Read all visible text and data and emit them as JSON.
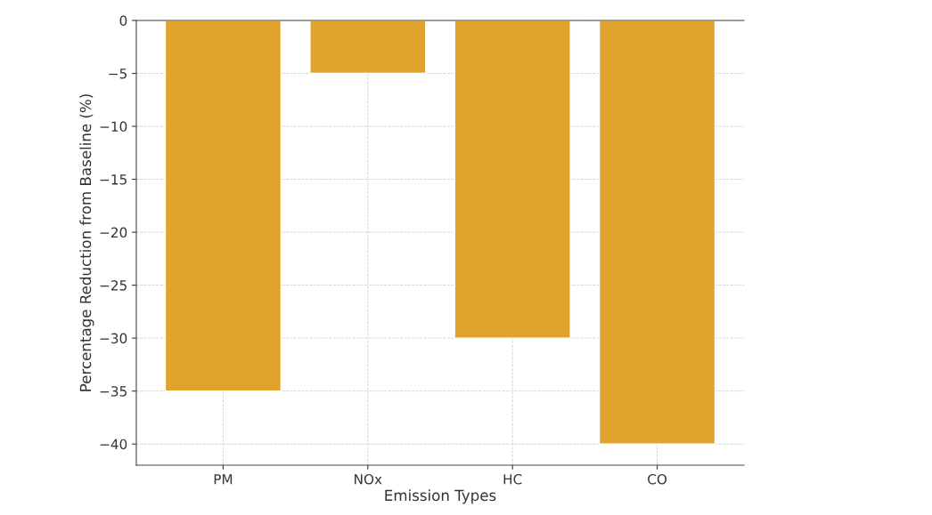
{
  "chart_data": {
    "type": "bar",
    "xlabel": "Emission Types",
    "ylabel": "Percentage Reduction from Baseline (%)",
    "categories": [
      "PM",
      "NOx",
      "HC",
      "CO"
    ],
    "values": [
      -35,
      -5,
      -30,
      -40
    ],
    "color": "#e2a32e",
    "ylim": [
      -42,
      0
    ],
    "yticks": [
      -40,
      -35,
      -30,
      -25,
      -20,
      -15,
      -10,
      -5,
      0
    ],
    "grid": true
  }
}
